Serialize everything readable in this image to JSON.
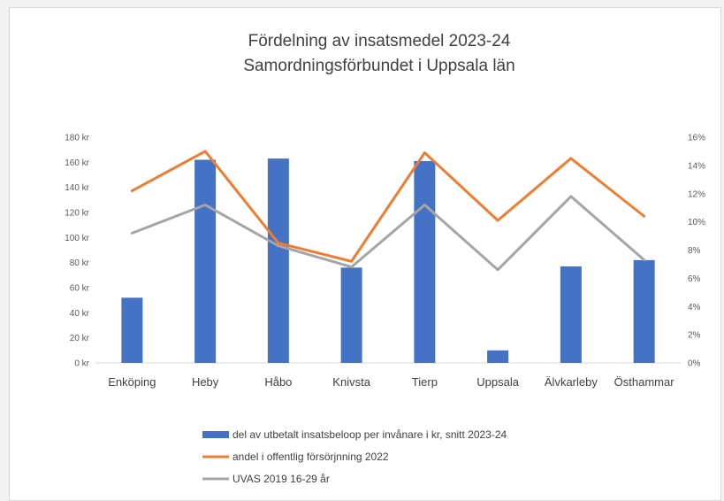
{
  "chart_data": {
    "type": "bar",
    "title": "Fördelning av insatsmedel 2023-24",
    "subtitle": "Samordningsförbundet  i Uppsala län",
    "categories": [
      "Enköping",
      "Heby",
      "Håbo",
      "Knivsta",
      "Tierp",
      "Uppsala",
      "Älvkarleby",
      "Östhammar"
    ],
    "y_left": {
      "min": 0,
      "max": 180,
      "step": 20,
      "ticks": [
        "0 kr",
        "20 kr",
        "40 kr",
        "60 kr",
        "80 kr",
        "100 kr",
        "120 kr",
        "140 kr",
        "160 kr",
        "180 kr"
      ]
    },
    "y_right": {
      "min": 0,
      "max": 16,
      "step": 2,
      "ticks": [
        "0%",
        "2%",
        "4%",
        "6%",
        "8%",
        "10%",
        "12%",
        "14%",
        "16%"
      ]
    },
    "grid": false,
    "legend_position": "bottom",
    "series": [
      {
        "name": "del av utbetalt insatsbeloop per invånare i kr, snitt 2023-24",
        "type": "bar",
        "axis": "left",
        "color": "#4472c4",
        "values": [
          52,
          162,
          163,
          76,
          161,
          10,
          77,
          82
        ]
      },
      {
        "name": "andel i offentlig försörjnning 2022",
        "type": "line",
        "axis": "right",
        "color": "#ed7d31",
        "values": [
          12.2,
          15.0,
          8.5,
          7.2,
          14.9,
          10.1,
          14.5,
          10.4
        ]
      },
      {
        "name": "UVAS 2019 16-29 år",
        "type": "line",
        "axis": "right",
        "color": "#a5a5a5",
        "values": [
          9.2,
          11.2,
          8.3,
          6.8,
          11.2,
          6.6,
          11.8,
          7.3
        ]
      }
    ]
  }
}
